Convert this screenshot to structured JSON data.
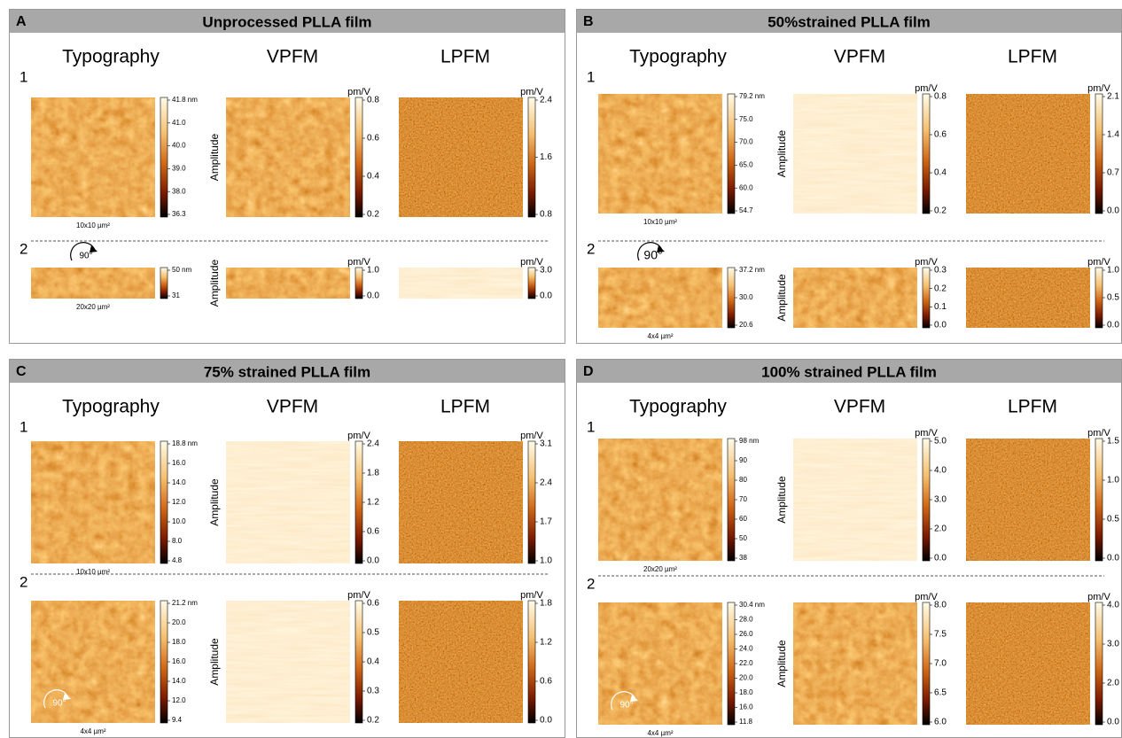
{
  "panels": [
    {
      "letter": "A",
      "title": "Unprocessed PLLA film",
      "columns": [
        "Typography",
        "VPFM",
        "LPFM"
      ],
      "rows": [
        {
          "label": "1",
          "topo": {
            "ticks": [
              "41.8 nm",
              "41.0",
              "40.0",
              "39.0",
              "38.0",
              "36.3"
            ],
            "scale": "10x10 µm²"
          },
          "vpfm": {
            "unit": "pm/V",
            "axis": "Amplitude",
            "ticks": [
              "0.8",
              "0.6",
              "0.4",
              "0.2"
            ]
          },
          "lpfm": {
            "unit": "pm/V",
            "ticks": [
              "2.4",
              "1.6",
              "0.8"
            ]
          }
        },
        {
          "label": "2",
          "rotation": "90°",
          "topo": {
            "ticks": [
              "50 nm",
              "31"
            ],
            "scale": "20x20 µm²"
          },
          "vpfm": {
            "unit": "pm/V",
            "axis": "Amplitude",
            "ticks": [
              "1.0",
              "0.0"
            ]
          },
          "lpfm": {
            "unit": "pm/V",
            "ticks": [
              "3.0",
              "0.0"
            ]
          }
        }
      ]
    },
    {
      "letter": "B",
      "title": "50%strained PLLA film",
      "columns": [
        "Typography",
        "VPFM",
        "LPFM"
      ],
      "rows": [
        {
          "label": "1",
          "topo": {
            "ticks": [
              "79.2 nm",
              "75.0",
              "70.0",
              "65.0",
              "60.0",
              "54.7"
            ],
            "scale": "10x10 µm²"
          },
          "vpfm": {
            "unit": "pm/V",
            "axis": "Amplitude",
            "ticks": [
              "0.8",
              "0.6",
              "0.4",
              "0.2"
            ]
          },
          "lpfm": {
            "unit": "pm/V",
            "ticks": [
              "2.1",
              "1.4",
              "0.7",
              "0.0"
            ]
          }
        },
        {
          "label": "2",
          "rotation": "90°",
          "topo": {
            "ticks": [
              "37.2 nm",
              "30.0",
              "20.6"
            ],
            "scale": "4x4 µm²"
          },
          "vpfm": {
            "unit": "pm/V",
            "axis": "Amplitude",
            "ticks": [
              "0.3",
              "0.2",
              "0.1",
              "0.0"
            ]
          },
          "lpfm": {
            "unit": "pm/V",
            "ticks": [
              "1.0",
              "0.5",
              "0.0"
            ]
          }
        }
      ]
    },
    {
      "letter": "C",
      "title": "75% strained PLLA film",
      "columns": [
        "Typography",
        "VPFM",
        "LPFM"
      ],
      "rows": [
        {
          "label": "1",
          "topo": {
            "ticks": [
              "18.8 nm",
              "16.0",
              "14.0",
              "12.0",
              "10.0",
              "8.0",
              "4.8"
            ],
            "scale": "10x10 µm²"
          },
          "vpfm": {
            "unit": "pm/V",
            "axis": "Amplitude",
            "ticks": [
              "2.4",
              "1.8",
              "1.2",
              "0.6",
              "0.0"
            ]
          },
          "lpfm": {
            "unit": "pm/V",
            "ticks": [
              "3.1",
              "2.4",
              "1.7",
              "1.0"
            ]
          }
        },
        {
          "label": "2",
          "rotation": "90°",
          "topo": {
            "ticks": [
              "21.2 nm",
              "20.0",
              "18.0",
              "16.0",
              "14.0",
              "12.0",
              "9.4"
            ],
            "scale": "4x4 µm²"
          },
          "vpfm": {
            "unit": "pm/V",
            "axis": "Amplitude",
            "ticks": [
              "0.6",
              "0.5",
              "0.4",
              "0.3",
              "0.2"
            ]
          },
          "lpfm": {
            "unit": "pm/V",
            "ticks": [
              "1.8",
              "1.2",
              "0.6",
              "0.0"
            ]
          }
        }
      ]
    },
    {
      "letter": "D",
      "title": "100% strained PLLA film",
      "columns": [
        "Typography",
        "VPFM",
        "LPFM"
      ],
      "rows": [
        {
          "label": "1",
          "topo": {
            "ticks": [
              "98 nm",
              "90",
              "80",
              "70",
              "60",
              "50",
              "38"
            ],
            "scale": "20x20 µm²"
          },
          "vpfm": {
            "unit": "pm/V",
            "axis": "Amplitude",
            "ticks": [
              "5.0",
              "4.0",
              "3.0",
              "2.0",
              "0.0"
            ]
          },
          "lpfm": {
            "unit": "pm/V",
            "ticks": [
              "1.5",
              "1.0",
              "0.5",
              "0.0"
            ]
          }
        },
        {
          "label": "2",
          "rotation": "90°",
          "topo": {
            "ticks": [
              "30.4 nm",
              "28.0",
              "26.0",
              "24.0",
              "22.0",
              "20.0",
              "18.0",
              "16.0",
              "11.8"
            ],
            "scale": "4x4 µm²"
          },
          "vpfm": {
            "unit": "pm/V",
            "axis": "Amplitude",
            "ticks": [
              "8.0",
              "7.5",
              "7.0",
              "6.5",
              "6.0"
            ]
          },
          "lpfm": {
            "unit": "pm/V",
            "ticks": [
              "4.0",
              "3.0",
              "2.0",
              "0.0"
            ]
          }
        }
      ]
    }
  ]
}
